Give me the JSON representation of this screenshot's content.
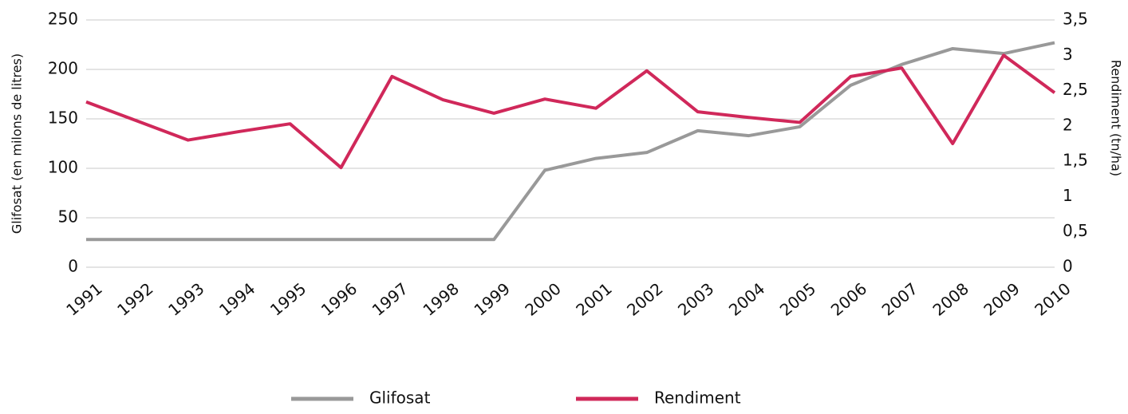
{
  "chart_data": {
    "type": "line",
    "y_label": "Glifosat (en milons de litres)",
    "y2_label": "Rendiment (tn/ha)",
    "categories": [
      "1991",
      "1992",
      "1993",
      "1994",
      "1995",
      "1996",
      "1997",
      "1998",
      "1999",
      "2000",
      "2001",
      "2002",
      "2003",
      "2004",
      "2005",
      "2006",
      "2007",
      "2008",
      "2009",
      "2010"
    ],
    "series": [
      {
        "name": "Glifosat",
        "color": "#999999",
        "values": [
          28,
          28,
          28,
          28,
          28,
          28,
          28,
          28,
          28,
          98,
          110,
          116,
          138,
          133,
          142,
          184,
          205,
          221,
          216,
          227
        ]
      },
      {
        "name": "Rendiment",
        "color": "#d0285a",
        "axis": "y2",
        "values": [
          2.34,
          2.07,
          1.8,
          1.92,
          2.03,
          1.41,
          2.7,
          2.37,
          2.18,
          2.38,
          2.25,
          2.78,
          2.2,
          2.12,
          2.05,
          2.7,
          2.82,
          1.75,
          3.0,
          2.47
        ]
      }
    ],
    "ylim": [
      0,
      250
    ],
    "yticks": [
      0,
      50,
      100,
      150,
      200,
      250
    ],
    "y2lim": [
      0,
      3.5
    ],
    "y2ticks": [
      0,
      {
        "value": 0.5,
        "label": "0,5"
      },
      1,
      {
        "value": 1.5,
        "label": "1,5"
      },
      2,
      {
        "value": 2.5,
        "label": "2,5"
      },
      3,
      {
        "value": 3.5,
        "label": "3,5"
      }
    ],
    "grid": true,
    "legend": "bottom"
  }
}
